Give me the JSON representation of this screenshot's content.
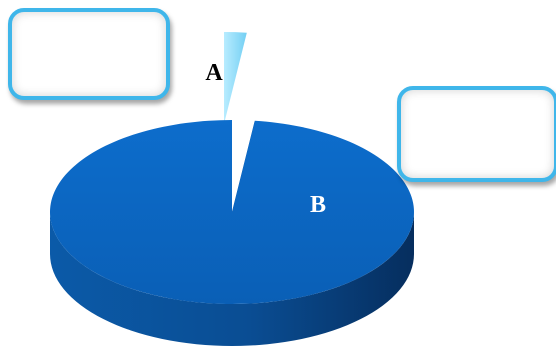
{
  "chart_data": {
    "type": "pie",
    "style": "3d",
    "categories": [
      "A",
      "B"
    ],
    "values": [
      2,
      98
    ],
    "start_angle_deg": 270,
    "explode": [
      1,
      0
    ],
    "colors": {
      "A_top": "#87d8f7",
      "A_side": "#2f6f8f",
      "B_top": "#0b66c2",
      "B_side": "#083d7a"
    },
    "callouts": [
      {
        "text": ""
      },
      {
        "text": ""
      }
    ]
  }
}
